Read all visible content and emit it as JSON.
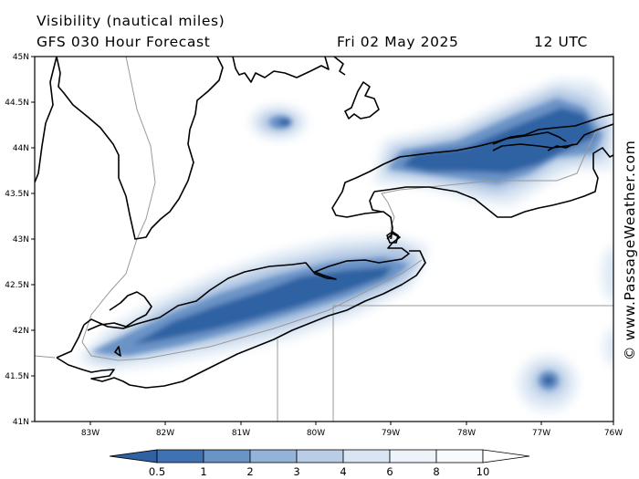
{
  "header": {
    "title": "Visibility (nautical miles)",
    "subtitle": "GFS 030 Hour Forecast",
    "date": "Fri 02 May 2025",
    "time": "12 UTC"
  },
  "credit": "© www.PassageWeather.com",
  "map": {
    "lat_labels": [
      "45N",
      "44.5N",
      "44N",
      "43.5N",
      "43N",
      "42.5N",
      "42N",
      "41.5N",
      "41N"
    ],
    "lon_labels": [
      "83W",
      "82W",
      "81W",
      "80W",
      "79W",
      "78W",
      "77W",
      "76W"
    ],
    "colors": {
      "land_outline": "#000000",
      "border": "#999999",
      "frame": "#000000"
    }
  },
  "legend": {
    "labels": [
      "0.5",
      "1",
      "2",
      "3",
      "4",
      "6",
      "8",
      "10"
    ],
    "colors": [
      "#2f62a3",
      "#3f72b3",
      "#6a93c6",
      "#93b3d8",
      "#b9cde6",
      "#d9e5f2",
      "#eef3f9",
      "#ffffff"
    ]
  }
}
